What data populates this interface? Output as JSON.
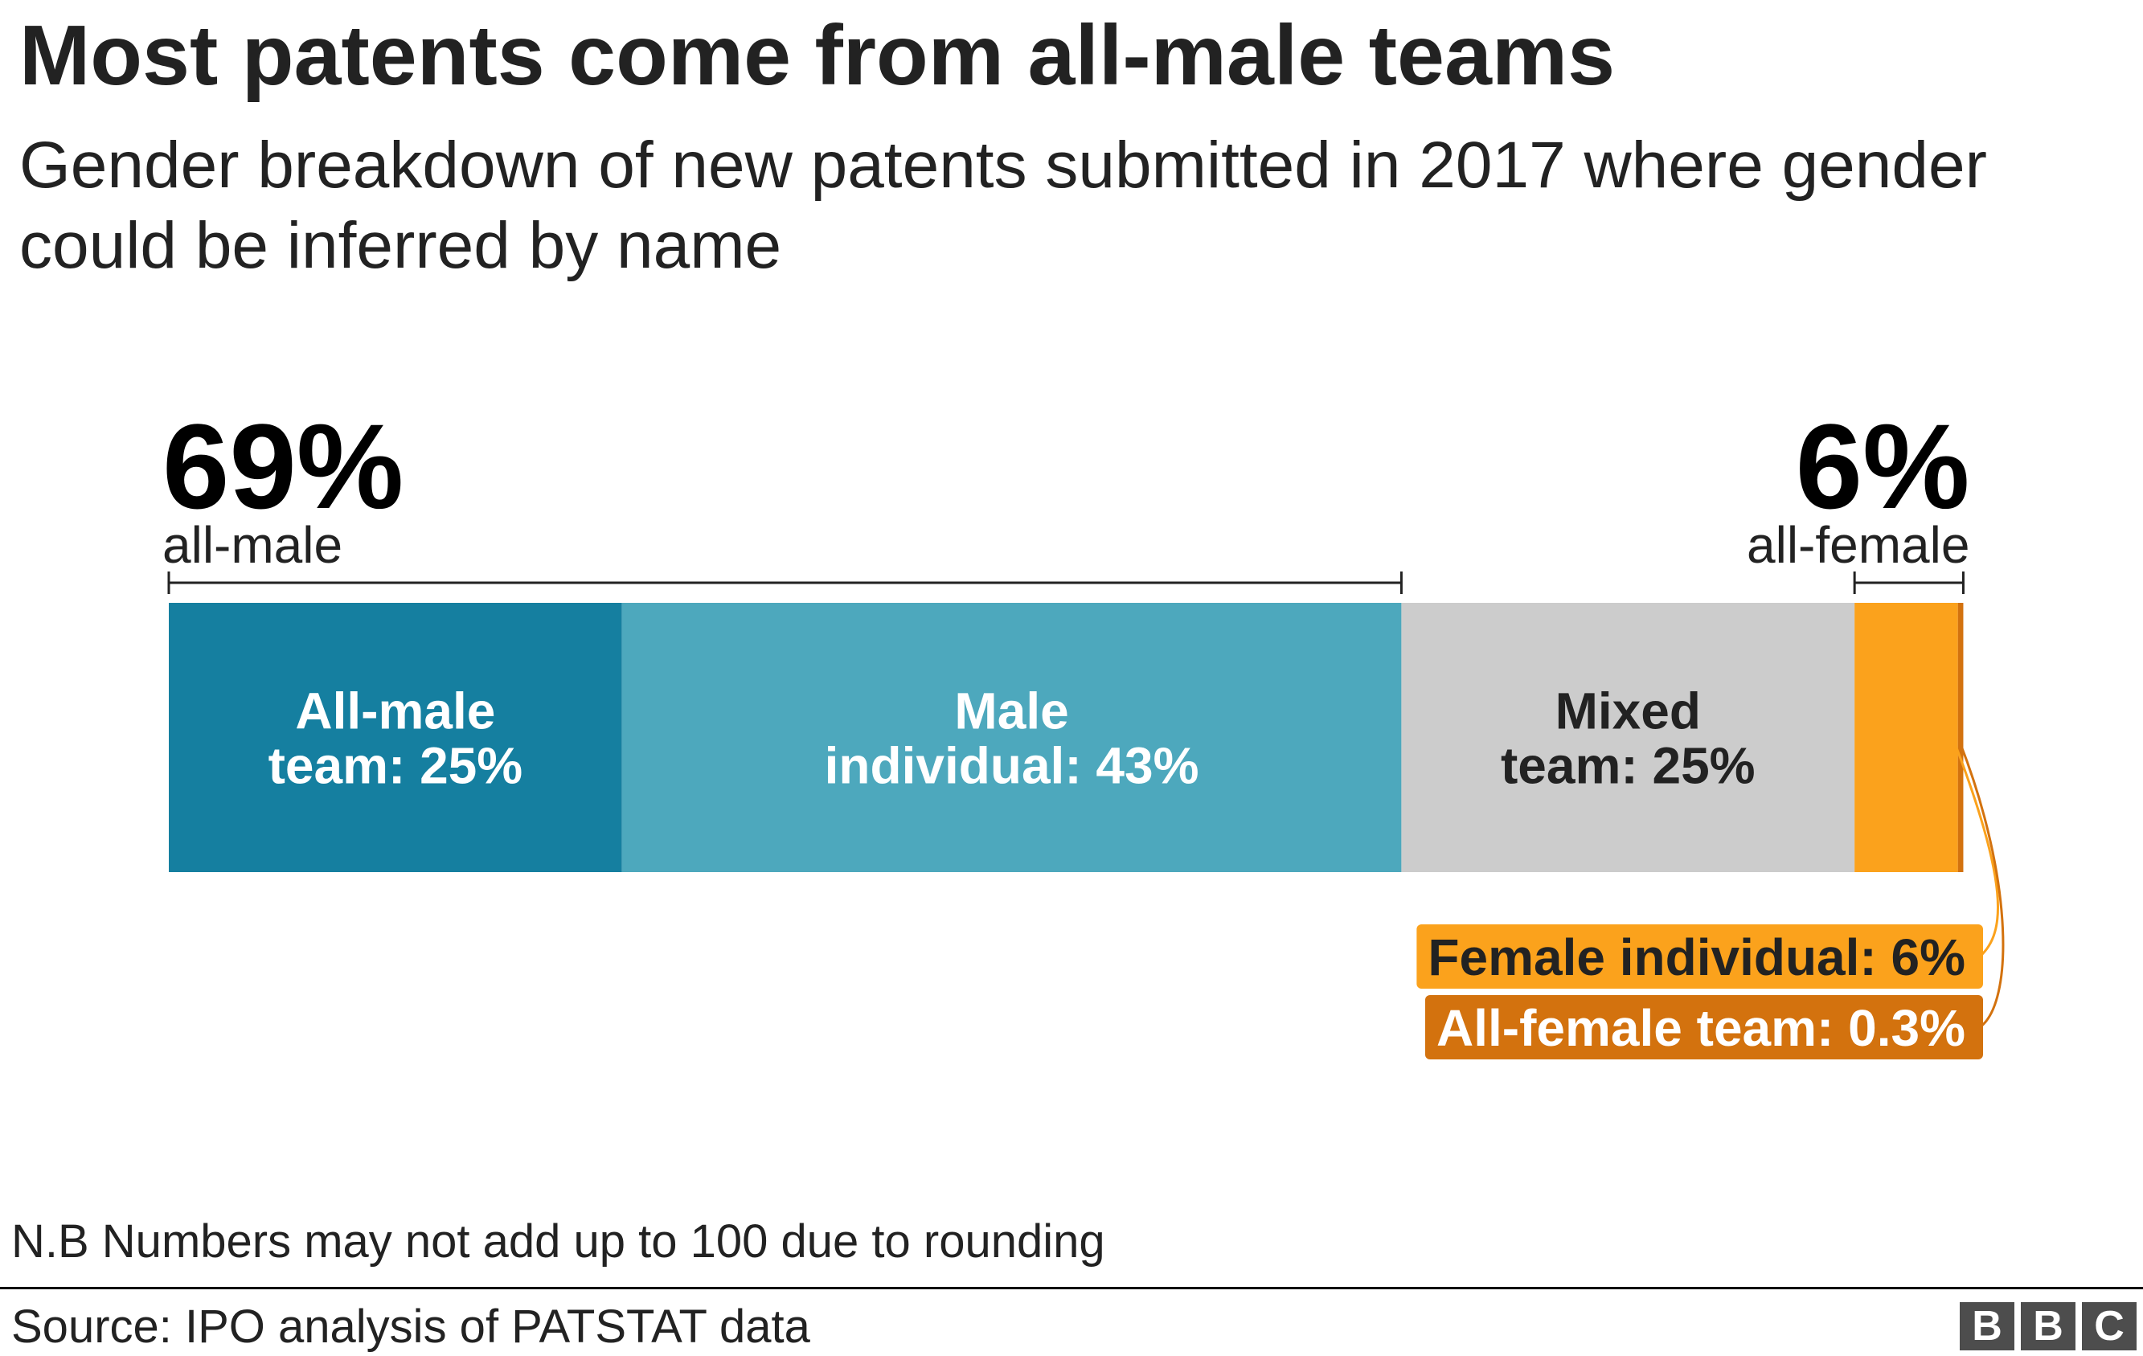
{
  "chart_data": {
    "type": "bar",
    "orientation": "horizontal-stacked",
    "title": "Most patents come from all-male teams",
    "subtitle": "Gender breakdown of new patents submitted in 2017 where gender could be inferred by name",
    "segments": [
      {
        "label_lines": [
          "All-male",
          "team: 25%"
        ],
        "value": 25,
        "color": "#157fa0",
        "text_color": "#ffffff"
      },
      {
        "label_lines": [
          "Male",
          "individual: 43%"
        ],
        "value": 43,
        "color": "#4da8bd",
        "text_color": "#ffffff"
      },
      {
        "label_lines": [
          "Mixed",
          "team: 25%"
        ],
        "value": 25,
        "color": "#cccccc",
        "text_color": "#222222"
      },
      {
        "label_lines": [
          "Female individual: 6%"
        ],
        "value": 5.7,
        "color": "#fba21c",
        "text_color": "#222222",
        "callout": true
      },
      {
        "label_lines": [
          "All-female team: 0.3%"
        ],
        "value": 0.3,
        "color": "#d3720e",
        "text_color": "#ffffff",
        "callout": true
      }
    ],
    "groups": [
      {
        "value_label": "69%",
        "name_label": "all-male",
        "from_segment": 0,
        "to_segment": 1,
        "align": "start"
      },
      {
        "value_label": "6%",
        "name_label": "all-female",
        "from_segment": 3,
        "to_segment": 4,
        "align": "end"
      }
    ],
    "xlim": [
      0,
      100
    ],
    "grid": false,
    "legend": "none"
  },
  "footnote": "N.B Numbers may not add up to 100 due to rounding",
  "source": "Source: IPO analysis of PATSTAT data",
  "logo": [
    "B",
    "B",
    "C"
  ]
}
